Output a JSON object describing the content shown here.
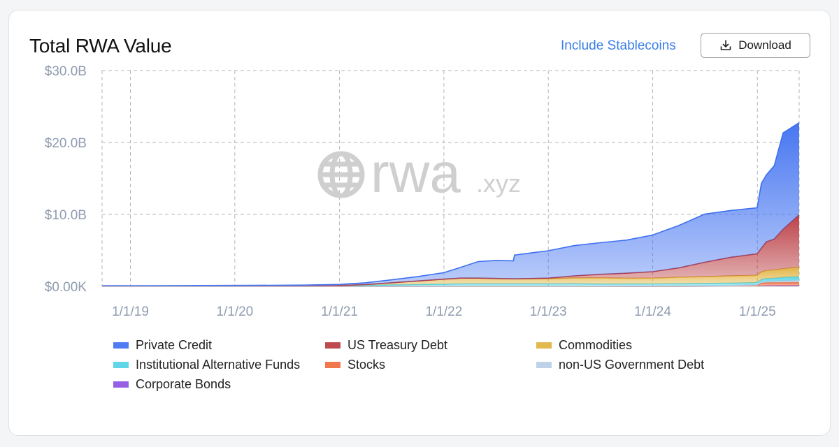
{
  "header": {
    "title": "Total RWA Value",
    "stablecoins_label": "Include Stablecoins",
    "download_label": "Download"
  },
  "watermark": {
    "brand": "rwa",
    "suffix": ".xyz"
  },
  "colors": {
    "Private Credit": "#3d6ff0",
    "US Treasury Debt": "#b8383e",
    "Commodities": "#e0b13a",
    "Institutional Alternative Funds": "#4fd3e6",
    "Stocks": "#f06a3b",
    "non-US Government Debt": "#b9cfe6",
    "Corporate Bonds": "#8a4fe0"
  },
  "chart_data": {
    "type": "area",
    "stacked": true,
    "grid": true,
    "legend_position": "bottom",
    "x_ticks": [
      "1/1/19",
      "1/1/20",
      "1/1/21",
      "1/1/22",
      "1/1/23",
      "1/1/24",
      "1/1/25"
    ],
    "y_ticks": [
      "$0.00K",
      "$10.0B",
      "$20.0B",
      "$30.0B"
    ],
    "x_range": [
      "2018-09-24",
      "2025-05-27"
    ],
    "ylim": [
      0,
      30
    ],
    "y_unit": "$B",
    "x": [
      "2018-09-24",
      "2019-03-01",
      "2019-09-01",
      "2020-03-01",
      "2020-09-01",
      "2021-01-01",
      "2021-04-01",
      "2021-07-01",
      "2021-10-01",
      "2022-01-01",
      "2022-03-01",
      "2022-05-01",
      "2022-07-01",
      "2022-09-01",
      "2022-09-05",
      "2023-01-01",
      "2023-04-01",
      "2023-07-01",
      "2023-10-01",
      "2024-01-01",
      "2024-04-01",
      "2024-07-01",
      "2024-10-01",
      "2024-12-31",
      "2025-01-15",
      "2025-02-01",
      "2025-03-01",
      "2025-04-01",
      "2025-05-27"
    ],
    "series": [
      {
        "name": "Corporate Bonds",
        "values": [
          0,
          0,
          0,
          0,
          0,
          0,
          0,
          0,
          0,
          0,
          0,
          0,
          0,
          0,
          0,
          0,
          0,
          0,
          0,
          0,
          0,
          0.02,
          0.03,
          0.05,
          0.06,
          0.07,
          0.08,
          0.09,
          0.1
        ]
      },
      {
        "name": "Stocks",
        "values": [
          0,
          0,
          0,
          0,
          0,
          0,
          0,
          0,
          0,
          0,
          0,
          0,
          0,
          0,
          0,
          0,
          0,
          0,
          0,
          0,
          0,
          0,
          0.02,
          0.05,
          0.4,
          0.45,
          0.45,
          0.45,
          0.45
        ]
      },
      {
        "name": "non-US Government Debt",
        "values": [
          0,
          0,
          0,
          0,
          0,
          0,
          0,
          0,
          0,
          0,
          0,
          0,
          0,
          0,
          0,
          0,
          0.01,
          0.02,
          0.03,
          0.04,
          0.06,
          0.08,
          0.1,
          0.12,
          0.14,
          0.16,
          0.2,
          0.25,
          0.3
        ]
      },
      {
        "name": "Institutional Alternative Funds",
        "values": [
          0.05,
          0.05,
          0.06,
          0.06,
          0.07,
          0.1,
          0.15,
          0.2,
          0.25,
          0.3,
          0.35,
          0.35,
          0.35,
          0.35,
          0.35,
          0.35,
          0.35,
          0.3,
          0.3,
          0.3,
          0.3,
          0.3,
          0.3,
          0.3,
          0.35,
          0.4,
          0.4,
          0.45,
          0.5
        ]
      },
      {
        "name": "Commodities",
        "values": [
          0,
          0,
          0,
          0,
          0,
          0.02,
          0.1,
          0.3,
          0.5,
          0.7,
          0.8,
          0.8,
          0.75,
          0.7,
          0.7,
          0.7,
          0.8,
          0.85,
          0.8,
          0.8,
          0.9,
          0.95,
          1.0,
          1.0,
          1.05,
          1.1,
          1.15,
          1.2,
          1.3
        ]
      },
      {
        "name": "US Treasury Debt",
        "values": [
          0,
          0,
          0,
          0,
          0,
          0,
          0,
          0,
          0,
          0,
          0,
          0,
          0,
          0,
          0,
          0.1,
          0.3,
          0.5,
          0.7,
          0.9,
          1.3,
          2.0,
          2.6,
          3.0,
          3.3,
          4.0,
          4.3,
          5.5,
          7.3
        ]
      },
      {
        "name": "Private Credit",
        "values": [
          0.05,
          0.05,
          0.06,
          0.08,
          0.1,
          0.15,
          0.25,
          0.4,
          0.6,
          0.9,
          1.5,
          2.3,
          2.5,
          2.5,
          3.3,
          3.8,
          4.2,
          4.4,
          4.6,
          5.1,
          5.9,
          6.7,
          6.5,
          6.4,
          9.0,
          9.3,
          10.2,
          13.4,
          12.8
        ]
      }
    ]
  }
}
